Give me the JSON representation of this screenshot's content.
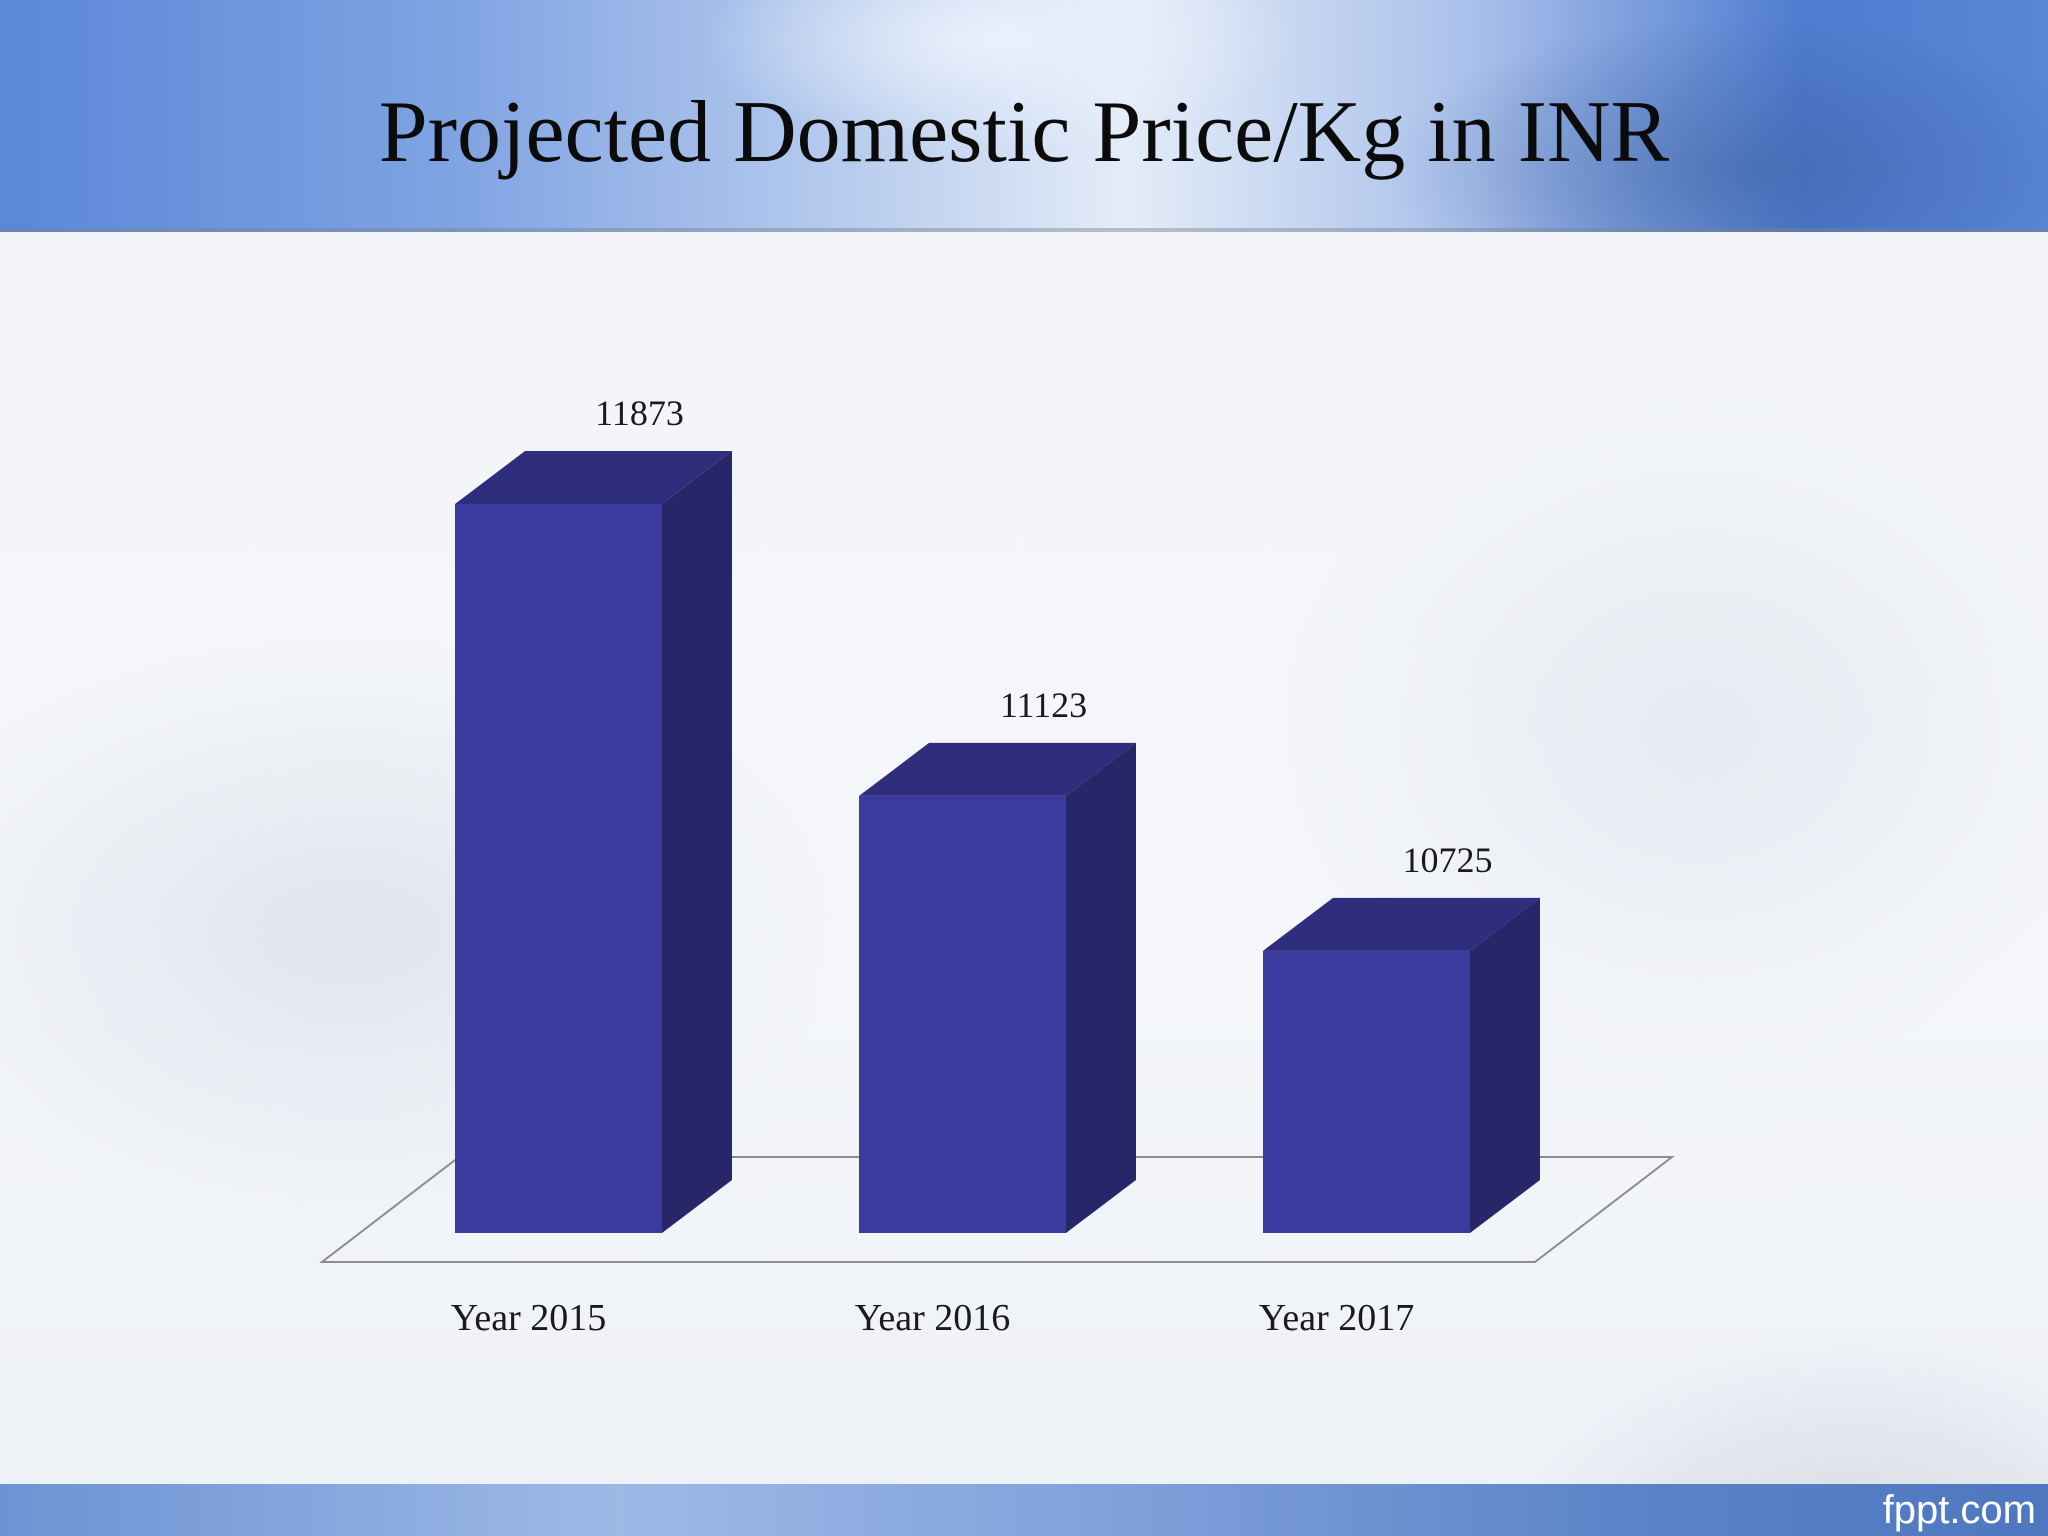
{
  "slide": {
    "title": "Projected Domestic Price/Kg in INR",
    "brand": "fppt.com"
  },
  "colors": {
    "bar_front": "#3b3a9f",
    "bar_side": "#272669",
    "bar_top": "#2f2e7c",
    "floor_line": "#8c8c8c",
    "label_text": "#1a1a1a"
  },
  "chart_data": {
    "type": "bar",
    "style": "3d-column",
    "title": "Projected Domestic Price/Kg in INR",
    "xlabel": "",
    "ylabel": "",
    "categories": [
      "Year 2015",
      "Year 2016",
      "Year 2017"
    ],
    "values": [
      11873,
      11123,
      10725
    ],
    "data_labels": [
      "11873",
      "11123",
      "10725"
    ],
    "ylim": [
      10000,
      12000
    ],
    "grid": false,
    "legend": "none"
  }
}
